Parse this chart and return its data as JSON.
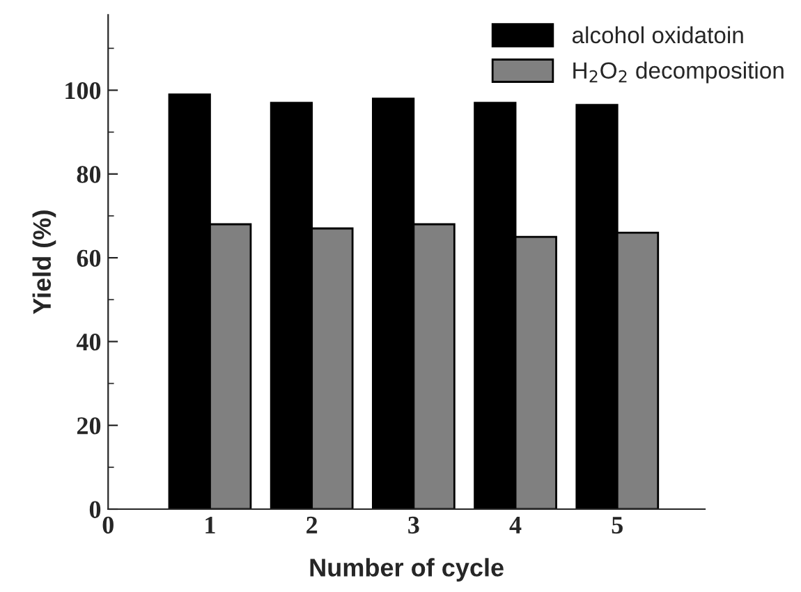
{
  "chart_data": {
    "type": "bar",
    "xlabel": "Number of cycle",
    "ylabel": "Yield (%)",
    "x": [
      1,
      2,
      3,
      4,
      5
    ],
    "series": [
      {
        "name": "alcohol oxidatoin",
        "color": "#000000",
        "values": [
          99,
          97,
          98,
          97,
          96.5
        ]
      },
      {
        "name": "H$_{2}$O$_{2}$ decomposition",
        "color": "#808080",
        "values": [
          68,
          67,
          68,
          65,
          66
        ]
      }
    ],
    "xlim": [
      0,
      5.86
    ],
    "xticks": [
      0,
      1,
      2,
      3,
      4,
      5
    ],
    "ylim": [
      0,
      118
    ],
    "yticks": [
      0,
      20,
      40,
      60,
      80,
      100
    ],
    "grid": false,
    "legend": "top right"
  }
}
